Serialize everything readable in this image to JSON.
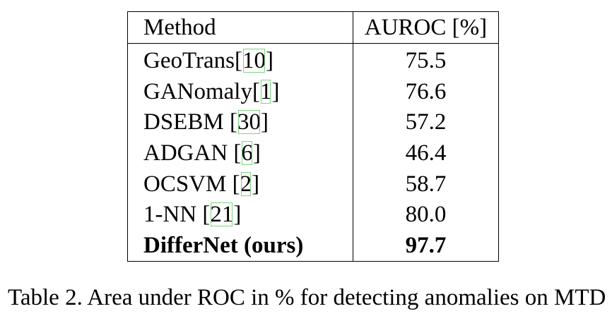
{
  "table": {
    "headers": [
      "Method",
      "AUROC [%]"
    ],
    "rows": [
      {
        "method": "GeoTrans",
        "ref_open": "[",
        "ref": "10",
        "ref_close": "]",
        "sep": "",
        "auroc": "75.5",
        "bold": false
      },
      {
        "method": "GANomaly",
        "ref_open": "[",
        "ref": "1",
        "ref_close": "]",
        "sep": "",
        "auroc": "76.6",
        "bold": false
      },
      {
        "method": "DSEBM",
        "ref_open": "[",
        "ref": "30",
        "ref_close": "]",
        "sep": " ",
        "auroc": "57.2",
        "bold": false
      },
      {
        "method": "ADGAN",
        "ref_open": "[",
        "ref": "6",
        "ref_close": "]",
        "sep": " ",
        "auroc": "46.4",
        "bold": false
      },
      {
        "method": "OCSVM",
        "ref_open": "[",
        "ref": "2",
        "ref_close": "]",
        "sep": " ",
        "auroc": "58.7",
        "bold": false
      },
      {
        "method": "1-NN",
        "ref_open": "[",
        "ref": "21",
        "ref_close": "]",
        "sep": " ",
        "auroc": "80.0",
        "bold": false
      },
      {
        "method": "DifferNet (ours)",
        "ref_open": "",
        "ref": "",
        "ref_close": "",
        "sep": "",
        "auroc": "97.7",
        "bold": true
      }
    ]
  },
  "caption": "Table 2. Area under ROC in % for detecting anomalies on MTD",
  "colors": {
    "citation_link_box": "#7ed37e"
  }
}
